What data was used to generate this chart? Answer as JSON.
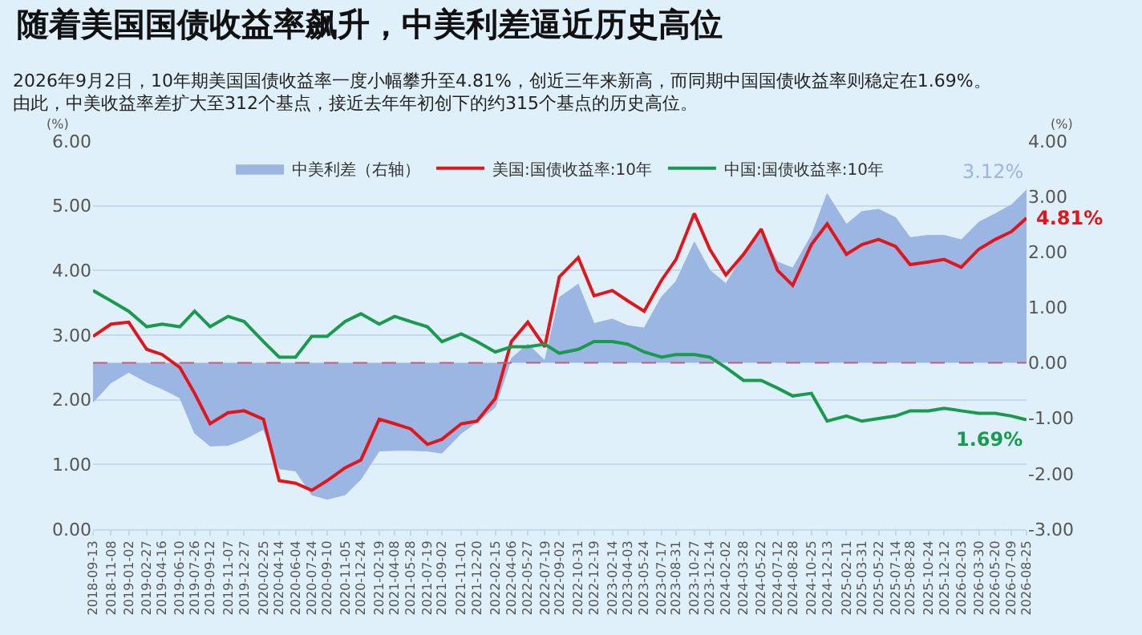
{
  "chart_data": {
    "type": "line",
    "title": "随着美国国债收益率飙升，中美利差逼近历史高位",
    "subtitle": [
      "2026年9月2日，10年期美国国债收益率一度小幅攀升至4.81%，创近三年来新高，而同期中国国债收益率则稳定在1.69%。",
      "由此，中美收益率差扩大至312个基点，接近去年年初创下的约315个基点的历史高位。"
    ],
    "ylabel": "(%)",
    "y2label": "(%)",
    "x": [
      "2018-09-13",
      "2018-11-08",
      "2019-01-02",
      "2019-02-27",
      "2019-04-16",
      "2019-06-10",
      "2019-07-26",
      "2019-09-12",
      "2019-11-07",
      "2019-12-27",
      "2020-02-25",
      "2020-04-14",
      "2020-06-04",
      "2020-07-24",
      "2020-09-10",
      "2020-11-05",
      "2020-12-24",
      "2021-02-19",
      "2021-04-08",
      "2021-05-28",
      "2021-07-19",
      "2021-09-02",
      "2021-11-01",
      "2021-12-20",
      "2022-02-15",
      "2022-04-06",
      "2022-05-27",
      "2022-07-19",
      "2022-09-02",
      "2022-10-31",
      "2022-12-19",
      "2023-02-14",
      "2023-04-03",
      "2023-05-24",
      "2023-07-17",
      "2023-08-31",
      "2023-10-27",
      "2023-12-14",
      "2024-02-02",
      "2024-03-28",
      "2024-05-22",
      "2024-07-12",
      "2024-08-28",
      "2024-10-25",
      "2024-12-13",
      "2025-02-11",
      "2025-03-31",
      "2025-05-22",
      "2025-07-14",
      "2025-08-28",
      "2025-10-24",
      "2025-12-12",
      "2026-02-03",
      "2026-03-30",
      "2026-05-20",
      "2026-07-09",
      "2026-08-25"
    ],
    "series": [
      {
        "name": "中美利差（右轴）",
        "type": "area",
        "axis": "y2",
        "color": "#9bb6e3",
        "values": [
          -0.71,
          -0.36,
          -0.17,
          -0.35,
          -0.47,
          -0.63,
          -1.27,
          -1.5,
          -1.49,
          -1.38,
          -1.2,
          -1.91,
          -1.95,
          -2.38,
          -2.46,
          -2.38,
          -2.1,
          -1.59,
          -1.58,
          -1.58,
          -1.59,
          -1.63,
          -1.27,
          -1.07,
          -0.8,
          0.08,
          0.34,
          0.04,
          1.18,
          1.42,
          0.71,
          0.79,
          0.67,
          0.63,
          1.19,
          1.47,
          2.18,
          1.67,
          1.43,
          1.95,
          2.34,
          1.82,
          1.71,
          2.3,
          3.05,
          2.5,
          2.73,
          2.77,
          2.62,
          2.26,
          2.3,
          2.3,
          2.22,
          2.54,
          2.69,
          2.85,
          3.12
        ],
        "value_labels": [
          null,
          null,
          null,
          null,
          null,
          null,
          null,
          null,
          null,
          null,
          null,
          null,
          null,
          null,
          null,
          null,
          null,
          null,
          null,
          null,
          null,
          null,
          null,
          null,
          null,
          null,
          null,
          null,
          null,
          null,
          null,
          null,
          null,
          null,
          null,
          null,
          null,
          null,
          null,
          null,
          null,
          null,
          null,
          null,
          null,
          null,
          null,
          null,
          null,
          null,
          null,
          null,
          null,
          null,
          null,
          null,
          "3.12%"
        ]
      },
      {
        "name": "美国:国债收益率:10年",
        "color": "#e0161b",
        "values": [
          2.98,
          3.17,
          3.2,
          2.78,
          2.7,
          2.5,
          2.1,
          1.63,
          1.8,
          1.83,
          1.7,
          0.75,
          0.71,
          0.6,
          0.75,
          0.95,
          1.07,
          1.7,
          1.63,
          1.55,
          1.31,
          1.39,
          1.63,
          1.67,
          2.02,
          2.9,
          3.2,
          2.82,
          3.9,
          4.2,
          3.61,
          3.69,
          3.53,
          3.37,
          3.85,
          4.17,
          4.88,
          4.33,
          3.93,
          4.25,
          4.64,
          4.0,
          3.77,
          4.4,
          4.72,
          4.25,
          4.4,
          4.48,
          4.37,
          4.09,
          4.13,
          4.17,
          4.05,
          4.33,
          4.48,
          4.6,
          4.81
        ],
        "value_labels": [
          null,
          null,
          null,
          null,
          null,
          null,
          null,
          null,
          null,
          null,
          null,
          null,
          null,
          null,
          null,
          null,
          null,
          null,
          null,
          null,
          null,
          null,
          null,
          null,
          null,
          null,
          null,
          null,
          null,
          null,
          null,
          null,
          null,
          null,
          null,
          null,
          null,
          null,
          null,
          null,
          null,
          null,
          null,
          null,
          null,
          null,
          null,
          null,
          null,
          null,
          null,
          null,
          null,
          null,
          null,
          null,
          "4.81%"
        ]
      },
      {
        "name": "中国:国债收益率:10年",
        "color": "#1a9a4e",
        "values": [
          3.69,
          3.53,
          3.37,
          3.13,
          3.17,
          3.13,
          3.37,
          3.13,
          3.29,
          3.21,
          2.9,
          2.66,
          2.66,
          2.98,
          2.98,
          3.21,
          3.33,
          3.17,
          3.29,
          3.21,
          3.13,
          2.9,
          3.02,
          2.9,
          2.74,
          2.82,
          2.82,
          2.86,
          2.72,
          2.78,
          2.9,
          2.9,
          2.86,
          2.74,
          2.66,
          2.7,
          2.7,
          2.66,
          2.5,
          2.3,
          2.3,
          2.18,
          2.06,
          2.1,
          1.67,
          1.75,
          1.67,
          1.71,
          1.75,
          1.83,
          1.83,
          1.87,
          1.83,
          1.79,
          1.79,
          1.75,
          1.69
        ],
        "value_labels": [
          null,
          null,
          null,
          null,
          null,
          null,
          null,
          null,
          null,
          null,
          null,
          null,
          null,
          null,
          null,
          null,
          null,
          null,
          null,
          null,
          null,
          null,
          null,
          null,
          null,
          null,
          null,
          null,
          null,
          null,
          null,
          null,
          null,
          null,
          null,
          null,
          null,
          null,
          null,
          null,
          null,
          null,
          null,
          null,
          null,
          null,
          null,
          null,
          null,
          null,
          null,
          null,
          null,
          null,
          null,
          null,
          "1.69%"
        ]
      }
    ],
    "xlim": [
      "2018-09-13",
      "2026-08-25"
    ],
    "xticks": [
      "2018-09-13",
      "2018-11-08",
      "2019-01-02",
      "2019-02-27",
      "2019-04-16",
      "2019-06-10",
      "2019-07-26",
      "2019-09-12",
      "2019-11-07",
      "2019-12-27",
      "2020-02-25",
      "2020-04-14",
      "2020-06-04",
      "2020-07-24",
      "2020-09-10",
      "2020-11-05",
      "2020-12-24",
      "2021-02-19",
      "2021-04-08",
      "2021-05-28",
      "2021-07-19",
      "2021-09-02",
      "2021-11-01",
      "2021-12-20",
      "2022-02-15",
      "2022-04-06",
      "2022-05-27",
      "2022-07-19",
      "2022-09-02",
      "2022-10-31",
      "2022-12-19",
      "2023-02-14",
      "2023-04-03",
      "2023-05-24",
      "2023-07-17",
      "2023-08-31",
      "2023-10-27",
      "2023-12-14",
      "2024-02-02",
      "2024-03-28",
      "2024-05-22",
      "2024-07-12",
      "2024-08-28",
      "2024-10-25",
      "2024-12-13",
      "2025-02-11",
      "2025-03-31",
      "2025-05-22",
      "2025-07-14",
      "2025-08-28",
      "2025-10-24",
      "2025-12-12",
      "2026-02-03",
      "2026-03-30",
      "2026-05-20",
      "2026-07-09",
      "2026-08-25"
    ],
    "ylim": [
      0,
      6
    ],
    "yticks": [
      {
        "value": 0,
        "label": "0.00"
      },
      {
        "value": 1,
        "label": "1.00"
      },
      {
        "value": 2,
        "label": "2.00"
      },
      {
        "value": 3,
        "label": "3.00"
      },
      {
        "value": 4,
        "label": "4.00"
      },
      {
        "value": 5,
        "label": "5.00"
      },
      {
        "value": 6,
        "label": "6.00"
      }
    ],
    "y2lim": [
      -3,
      4
    ],
    "y2ticks": [
      {
        "value": -3,
        "label": "-3.00"
      },
      {
        "value": -2,
        "label": "-2.00"
      },
      {
        "value": -1,
        "label": "-1.00"
      },
      {
        "value": 0,
        "label": "0.00"
      },
      {
        "value": 1,
        "label": "1.00"
      },
      {
        "value": 2,
        "label": "2.00"
      },
      {
        "value": 3,
        "label": "3.00"
      },
      {
        "value": 4,
        "label": "4.00"
      }
    ],
    "ref_lines": [
      {
        "axis": "y2",
        "value": 0,
        "color": "#c0607a",
        "line_style": "dashed"
      }
    ],
    "grid": "y",
    "legend": "top",
    "line_style": "solid"
  }
}
